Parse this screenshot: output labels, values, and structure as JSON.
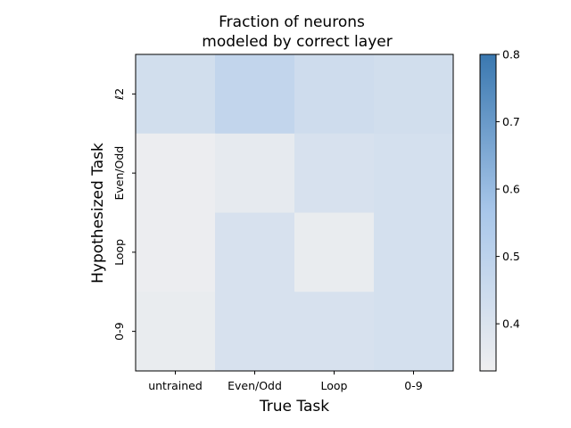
{
  "chart_data": {
    "type": "heatmap",
    "title": "Fraction of neurons\nmodeled by correct layer",
    "title_lines": [
      "Fraction of neurons",
      "modeled by correct layer"
    ],
    "xlabel": "True Task",
    "ylabel": "Hypothesized Task",
    "x_categories": [
      "untrained",
      "Even/Odd",
      "Loop",
      "0-9"
    ],
    "y_categories": [
      "ℓ2",
      "Even/Odd",
      "Loop",
      "0-9"
    ],
    "values": [
      [
        0.43,
        0.48,
        0.44,
        0.43
      ],
      [
        0.34,
        0.36,
        0.41,
        0.42
      ],
      [
        0.34,
        0.41,
        0.35,
        0.42
      ],
      [
        0.35,
        0.41,
        0.41,
        0.42
      ]
    ],
    "colorbar": {
      "vmin": 0.33,
      "vmax": 0.8,
      "ticks": [
        0.4,
        0.5,
        0.6,
        0.7,
        0.8
      ],
      "tick_labels": [
        "0.4",
        "0.5",
        "0.6",
        "0.7",
        "0.8"
      ],
      "colormap_low": "#efeff0",
      "colormap_mid": "#a9c7ea",
      "colormap_high": "#3a78b0"
    }
  }
}
